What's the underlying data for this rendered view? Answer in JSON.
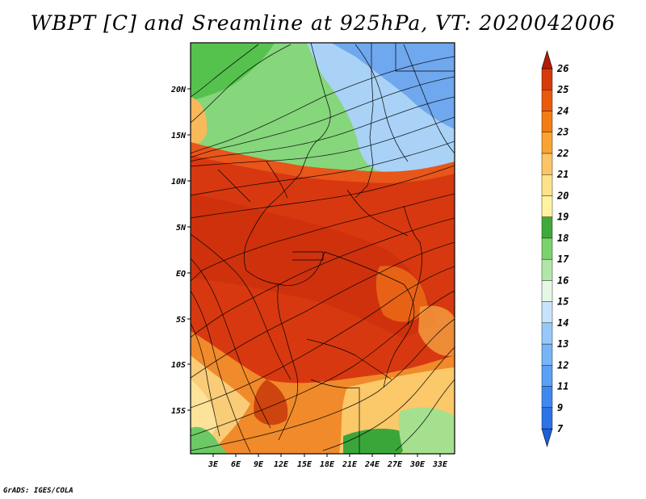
{
  "title": "WBPT [C] and Sreamline at 925hPa, VT: 2020042006",
  "footer": "GrADS: IGES/COLA",
  "map": {
    "lat_labels": [
      "20N",
      "15N",
      "10N",
      "5N",
      "EQ",
      "5S",
      "10S",
      "15S"
    ],
    "lon_labels": [
      "3E",
      "6E",
      "9E",
      "12E",
      "15E",
      "18E",
      "21E",
      "24E",
      "27E",
      "30E",
      "33E"
    ],
    "field": "wet-bulb potential temperature",
    "units": "C",
    "level": "925hPa"
  },
  "colorbar": {
    "labels": [
      "7",
      "9",
      "11",
      "12",
      "13",
      "14",
      "15",
      "16",
      "17",
      "18",
      "19",
      "20",
      "21",
      "22",
      "23",
      "24",
      "25",
      "26"
    ],
    "colors": [
      "#1e5fd8",
      "#2c74e6",
      "#3f88f0",
      "#5aa0f5",
      "#78b5f7",
      "#98c8f9",
      "#c8e4fa",
      "#e6f7e6",
      "#b2e6a7",
      "#7cd36e",
      "#3faa3a",
      "#fff3a2",
      "#fde28a",
      "#fbc464",
      "#f9a332",
      "#f37c14",
      "#ea5a0c",
      "#d63a0a",
      "#b41b06"
    ],
    "extend": "both"
  }
}
